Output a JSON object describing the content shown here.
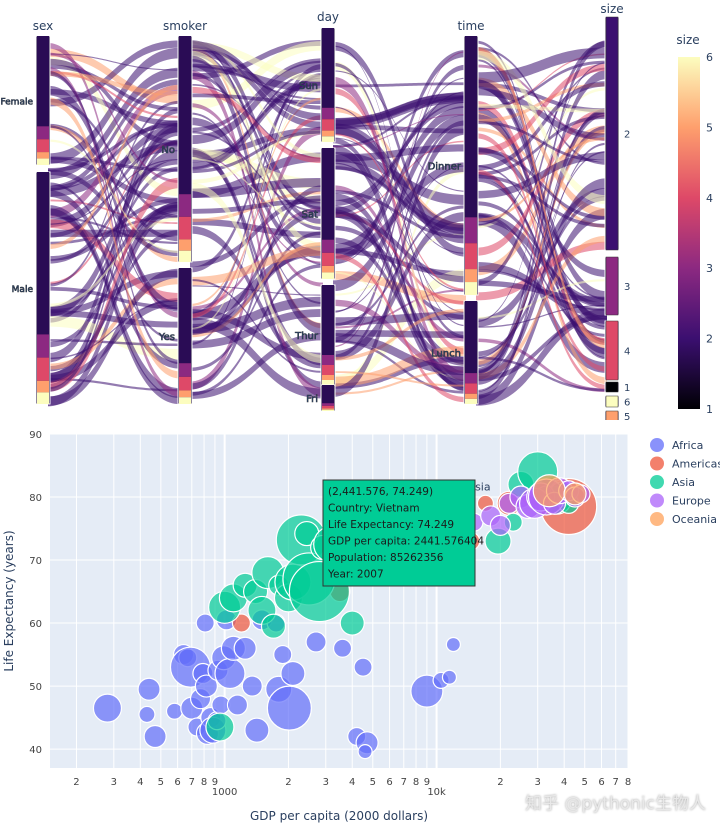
{
  "parcats": {
    "dimensions": [
      {
        "label": "sex",
        "categories": [
          "Female",
          "Male"
        ]
      },
      {
        "label": "smoker",
        "categories": [
          "No",
          "Yes"
        ]
      },
      {
        "label": "day",
        "categories": [
          "Sun",
          "Sat",
          "Thur",
          "Fri"
        ]
      },
      {
        "label": "time",
        "categories": [
          "Dinner",
          "Lunch"
        ]
      },
      {
        "label": "size",
        "categories": [
          "2",
          "3",
          "4",
          "1",
          "6",
          "5"
        ]
      }
    ],
    "colorbar": {
      "title": "size",
      "ticks": [
        "6",
        "5",
        "4",
        "3",
        "2",
        "1"
      ],
      "colorscale": [
        "#000004",
        "#3b0f70",
        "#8c2981",
        "#de4968",
        "#fe9f6d",
        "#fcfdbf"
      ],
      "range": [
        1,
        6
      ]
    }
  },
  "chart_data": {
    "type": "scatter",
    "xlabel": "GDP per capita (2000 dollars)",
    "ylabel": "Life Expectancy (years)",
    "xscale": "log",
    "xlim": [
      150,
      80000
    ],
    "ylim": [
      37,
      90
    ],
    "grid": true,
    "legend": "top-right",
    "x_major_ticks": [
      {
        "value": 1000,
        "label": "1000"
      },
      {
        "value": 10000,
        "label": "10k"
      }
    ],
    "x_minor_ticks": [
      "2",
      "3",
      "4",
      "5",
      "6",
      "7",
      "8",
      "9",
      "2",
      "3",
      "4",
      "5",
      "6",
      "7",
      "8",
      "9",
      "2",
      "3",
      "4",
      "5",
      "6",
      "7",
      "8"
    ],
    "y_ticks": [
      "40",
      "50",
      "60",
      "70",
      "80",
      "90"
    ],
    "series": [
      {
        "name": "Africa",
        "color": "#636efa",
        "points": [
          [
            280,
            46.5,
            14
          ],
          [
            430,
            45.5,
            8
          ],
          [
            440,
            49.5,
            11
          ],
          [
            470,
            42,
            11
          ],
          [
            580,
            46,
            8
          ],
          [
            640,
            55,
            10
          ],
          [
            670,
            54.5,
            9
          ],
          [
            690,
            53,
            20
          ],
          [
            700,
            46.5,
            11
          ],
          [
            740,
            43.5,
            9
          ],
          [
            770,
            48,
            10
          ],
          [
            790,
            52,
            10
          ],
          [
            810,
            60,
            9
          ],
          [
            820,
            50,
            11
          ],
          [
            830,
            42.5,
            11
          ],
          [
            860,
            45,
            10
          ],
          [
            880,
            43,
            13
          ],
          [
            920,
            44.5,
            9
          ],
          [
            930,
            52.5,
            10
          ],
          [
            960,
            47,
            9
          ],
          [
            990,
            54.5,
            12
          ],
          [
            1020,
            60.5,
            10
          ],
          [
            1060,
            52,
            15
          ],
          [
            1100,
            56,
            12
          ],
          [
            1150,
            47,
            10
          ],
          [
            1250,
            56,
            11
          ],
          [
            1350,
            50,
            10
          ],
          [
            1420,
            43,
            12
          ],
          [
            1500,
            60.5,
            10
          ],
          [
            1750,
            60,
            9
          ],
          [
            1800,
            49.5,
            13
          ],
          [
            1880,
            55,
            9
          ],
          [
            2020,
            46.5,
            22
          ],
          [
            2100,
            52,
            12
          ],
          [
            2700,
            57,
            10
          ],
          [
            3600,
            56,
            9
          ],
          [
            4200,
            42,
            9
          ],
          [
            4500,
            53,
            9
          ],
          [
            4700,
            41,
            11
          ],
          [
            4600,
            39.6,
            7
          ],
          [
            9000,
            49.2,
            16
          ],
          [
            10500,
            50.9,
            8
          ],
          [
            11500,
            51.4,
            7
          ],
          [
            12000,
            56.6,
            7
          ]
        ]
      },
      {
        "name": "Americas",
        "color": "#ef553b",
        "points": [
          [
            1200,
            60,
            9
          ],
          [
            3500,
            65,
            10
          ],
          [
            5500,
            72,
            12
          ],
          [
            6500,
            73,
            10
          ],
          [
            7500,
            72,
            11
          ],
          [
            9000,
            74,
            10
          ],
          [
            11000,
            75.5,
            9
          ],
          [
            13000,
            78.5,
            10
          ],
          [
            14500,
            73,
            9
          ],
          [
            17000,
            79,
            8
          ],
          [
            22000,
            79,
            12
          ],
          [
            28000,
            80,
            10
          ],
          [
            35000,
            81,
            14
          ],
          [
            42000,
            78.5,
            28
          ],
          [
            44000,
            80.5,
            11
          ]
        ]
      },
      {
        "name": "Asia",
        "color": "#00cc96",
        "points": [
          [
            950,
            43.5,
            14
          ],
          [
            1000,
            62.5,
            16
          ],
          [
            1100,
            64,
            14
          ],
          [
            1250,
            66,
            12
          ],
          [
            1400,
            65,
            12
          ],
          [
            1500,
            62,
            14
          ],
          [
            1600,
            68,
            16
          ],
          [
            1700,
            59.5,
            12
          ],
          [
            1800,
            66,
            10
          ],
          [
            2000,
            64,
            14
          ],
          [
            2100,
            66.5,
            18
          ],
          [
            2300,
            73.2,
            25
          ],
          [
            2441,
            74.2,
            12
          ],
          [
            2500,
            67,
            26
          ],
          [
            2800,
            65,
            30
          ],
          [
            2900,
            72,
            12
          ],
          [
            3200,
            72.5,
            18
          ],
          [
            3600,
            70,
            10
          ],
          [
            4000,
            60,
            12
          ],
          [
            4500,
            72,
            16
          ],
          [
            5000,
            70,
            10
          ],
          [
            19500,
            73,
            13
          ],
          [
            23000,
            76,
            9
          ],
          [
            25000,
            82,
            13
          ],
          [
            30000,
            84,
            20
          ],
          [
            33000,
            80,
            11
          ],
          [
            37000,
            79.5,
            14
          ],
          [
            39000,
            80.5,
            12
          ],
          [
            42000,
            79,
            10
          ]
        ]
      },
      {
        "name": "Europe",
        "color": "#ab63fa",
        "points": [
          [
            13000,
            75,
            9
          ],
          [
            15000,
            76,
            9
          ],
          [
            18000,
            77,
            10
          ],
          [
            20000,
            75.5,
            10
          ],
          [
            22000,
            79,
            10
          ],
          [
            25000,
            80,
            11
          ],
          [
            27000,
            78.5,
            12
          ],
          [
            29000,
            79,
            15
          ],
          [
            31000,
            80,
            14
          ],
          [
            33000,
            80,
            18
          ],
          [
            36000,
            79,
            11
          ],
          [
            38000,
            81,
            13
          ],
          [
            42000,
            81,
            10
          ],
          [
            45000,
            80,
            10
          ],
          [
            48000,
            80.5,
            9
          ]
        ]
      },
      {
        "name": "Oceania",
        "color": "#ffa15a",
        "points": [
          [
            12000,
            70,
            6
          ],
          [
            34000,
            81,
            16
          ],
          [
            45000,
            80.5,
            11
          ]
        ]
      }
    ],
    "annotation": {
      "text": "Asia",
      "x": 14000,
      "y": 81
    },
    "tooltip": {
      "lines": [
        "(2,441.576, 74.249)",
        "Country: Vietnam",
        "Life Expectancy: 74.249",
        "GDP per capita: 2441.576404",
        "Population: 85262356",
        "Year: 2007"
      ],
      "x": 2441.576,
      "y": 74.249,
      "color": "#00cc96"
    }
  },
  "watermark": "知乎 @pythonic生物人"
}
